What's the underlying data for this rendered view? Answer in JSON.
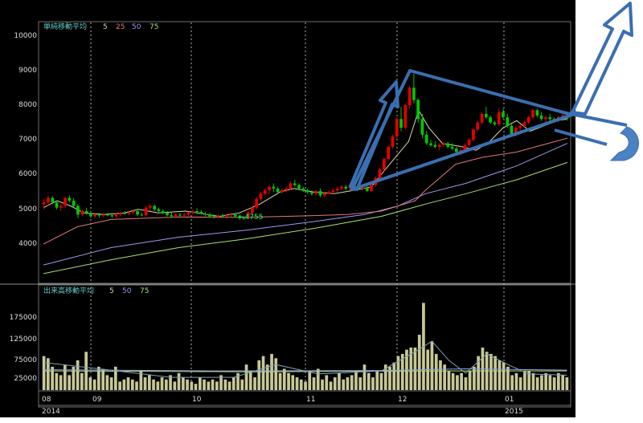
{
  "chart_data": [
    {
      "type": "candlestick",
      "title": "単純移動平均",
      "legend": [
        {
          "label": "5",
          "color": "#d9d9b0"
        },
        {
          "label": "25",
          "color": "#e07878"
        },
        {
          "label": "50",
          "color": "#9a9af0"
        },
        {
          "label": "75",
          "color": "#a8e070"
        }
      ],
      "y_ticks": [
        "10000",
        "9000",
        "8000",
        "7000",
        "6000",
        "5000",
        "4000"
      ],
      "ylim": [
        3000,
        10300
      ],
      "low_annotation": "←4755",
      "series_ma": {
        "ma25": [
          [
            0,
            4050
          ],
          [
            10,
            4550
          ],
          [
            20,
            4760
          ],
          [
            40,
            4830
          ],
          [
            60,
            4820
          ],
          [
            80,
            4870
          ],
          [
            90,
            4900
          ],
          [
            100,
            5000
          ],
          [
            110,
            5300
          ],
          [
            113,
            5600
          ],
          [
            122,
            6350
          ],
          [
            130,
            6550
          ],
          [
            140,
            6700
          ],
          [
            155,
            7100
          ]
        ],
        "ma50": [
          [
            0,
            3450
          ],
          [
            20,
            3950
          ],
          [
            40,
            4250
          ],
          [
            60,
            4450
          ],
          [
            80,
            4700
          ],
          [
            95,
            4900
          ],
          [
            105,
            5150
          ],
          [
            113,
            5500
          ],
          [
            125,
            5800
          ],
          [
            140,
            6300
          ],
          [
            155,
            6950
          ]
        ],
        "ma75": [
          [
            0,
            3200
          ],
          [
            20,
            3600
          ],
          [
            40,
            3950
          ],
          [
            60,
            4200
          ],
          [
            80,
            4500
          ],
          [
            100,
            4850
          ],
          [
            113,
            5200
          ],
          [
            125,
            5500
          ],
          [
            140,
            5900
          ],
          [
            155,
            6400
          ]
        ],
        "ma5": [
          [
            0,
            5100
          ],
          [
            4,
            5300
          ],
          [
            8,
            5150
          ],
          [
            12,
            4950
          ],
          [
            18,
            4900
          ],
          [
            24,
            4950
          ],
          [
            28,
            5050
          ],
          [
            34,
            4950
          ],
          [
            42,
            5000
          ],
          [
            52,
            4850
          ],
          [
            58,
            4950
          ],
          [
            64,
            5200
          ],
          [
            70,
            5550
          ],
          [
            74,
            5650
          ],
          [
            80,
            5550
          ],
          [
            86,
            5500
          ],
          [
            92,
            5600
          ],
          [
            97,
            5700
          ],
          [
            102,
            6300
          ],
          [
            108,
            7000
          ],
          [
            111,
            7900
          ],
          [
            114,
            7400
          ],
          [
            118,
            6950
          ],
          [
            124,
            6850
          ],
          [
            128,
            6750
          ],
          [
            132,
            7000
          ],
          [
            136,
            7400
          ],
          [
            140,
            7600
          ],
          [
            144,
            7300
          ],
          [
            148,
            7450
          ],
          [
            152,
            7600
          ],
          [
            155,
            7650
          ]
        ]
      },
      "candles": [
        [
          5200,
          5350,
          5050,
          5250
        ],
        [
          5250,
          5450,
          5150,
          5380
        ],
        [
          5380,
          5430,
          5200,
          5250
        ],
        [
          5250,
          5300,
          5050,
          5100
        ],
        [
          5100,
          5200,
          5000,
          5150
        ],
        [
          5150,
          5420,
          5100,
          5380
        ],
        [
          5380,
          5450,
          5250,
          5300
        ],
        [
          5300,
          5380,
          5100,
          5150
        ],
        [
          5150,
          5200,
          4800,
          4900
        ],
        [
          4900,
          5050,
          4850,
          5000
        ],
        [
          5000,
          5100,
          4900,
          4950
        ],
        [
          4950,
          5000,
          4800,
          4850
        ],
        [
          4850,
          4950,
          4800,
          4900
        ],
        [
          4900,
          4950,
          4820,
          4870
        ],
        [
          4870,
          4950,
          4820,
          4900
        ],
        [
          4900,
          4950,
          4850,
          4880
        ],
        [
          4880,
          4950,
          4800,
          4850
        ],
        [
          4850,
          4950,
          4800,
          4900
        ],
        [
          4900,
          4980,
          4850,
          4950
        ],
        [
          4950,
          5000,
          4900,
          4920
        ],
        [
          4920,
          5000,
          4880,
          4960
        ],
        [
          4960,
          5050,
          4900,
          5000
        ],
        [
          5000,
          5050,
          4850,
          4900
        ],
        [
          4900,
          4950,
          4850,
          4880
        ],
        [
          4880,
          5150,
          4850,
          5100
        ],
        [
          5100,
          5200,
          5000,
          5150
        ],
        [
          5150,
          5180,
          5000,
          5050
        ],
        [
          5050,
          5100,
          4980,
          5000
        ],
        [
          5000,
          5050,
          4900,
          4950
        ],
        [
          4950,
          5000,
          4850,
          4880
        ],
        [
          4880,
          4950,
          4800,
          4850
        ],
        [
          4850,
          4930,
          4800,
          4900
        ],
        [
          4900,
          4950,
          4850,
          4870
        ],
        [
          4870,
          4950,
          4820,
          4900
        ],
        [
          4900,
          4980,
          4850,
          4950
        ],
        [
          4950,
          5050,
          4900,
          5000
        ],
        [
          5000,
          5080,
          4950,
          4980
        ],
        [
          4980,
          5030,
          4900,
          4920
        ],
        [
          4920,
          4980,
          4850,
          4900
        ],
        [
          4900,
          4950,
          4820,
          4850
        ],
        [
          4850,
          4900,
          4780,
          4830
        ],
        [
          4830,
          4900,
          4800,
          4870
        ],
        [
          4870,
          4920,
          4800,
          4850
        ],
        [
          4850,
          4900,
          4800,
          4880
        ],
        [
          4880,
          4950,
          4830,
          4900
        ],
        [
          4900,
          4950,
          4820,
          4850
        ],
        [
          4850,
          4900,
          4750,
          4800
        ],
        [
          4800,
          4850,
          4755,
          4790
        ],
        [
          4790,
          5000,
          4780,
          4950
        ],
        [
          4950,
          5150,
          4900,
          5100
        ],
        [
          5100,
          5400,
          5050,
          5350
        ],
        [
          5350,
          5550,
          5300,
          5500
        ],
        [
          5500,
          5650,
          5450,
          5600
        ],
        [
          5600,
          5750,
          5500,
          5700
        ],
        [
          5700,
          5800,
          5550,
          5650
        ],
        [
          5650,
          5700,
          5500,
          5550
        ],
        [
          5550,
          5650,
          5500,
          5600
        ],
        [
          5600,
          5700,
          5550,
          5650
        ],
        [
          5650,
          5850,
          5600,
          5800
        ],
        [
          5800,
          5900,
          5700,
          5750
        ],
        [
          5750,
          5800,
          5600,
          5650
        ],
        [
          5650,
          5700,
          5550,
          5600
        ],
        [
          5600,
          5650,
          5500,
          5550
        ],
        [
          5550,
          5600,
          5450,
          5500
        ],
        [
          5500,
          5600,
          5450,
          5580
        ],
        [
          5580,
          5650,
          5400,
          5450
        ],
        [
          5450,
          5550,
          5400,
          5500
        ],
        [
          5500,
          5600,
          5480,
          5550
        ],
        [
          5550,
          5650,
          5500,
          5600
        ],
        [
          5600,
          5700,
          5550,
          5650
        ],
        [
          5650,
          5750,
          5600,
          5700
        ],
        [
          5700,
          5750,
          5600,
          5650
        ],
        [
          5650,
          5800,
          5600,
          5750
        ],
        [
          5750,
          5800,
          5650,
          5700
        ],
        [
          5700,
          5750,
          5600,
          5650
        ],
        [
          5650,
          5720,
          5600,
          5680
        ],
        [
          5680,
          5750,
          5550,
          5580
        ],
        [
          5580,
          5800,
          5550,
          5750
        ],
        [
          5750,
          6000,
          5700,
          5950
        ],
        [
          5950,
          6250,
          5900,
          6200
        ],
        [
          6200,
          6550,
          6150,
          6500
        ],
        [
          6500,
          6900,
          6450,
          6850
        ],
        [
          6850,
          7200,
          6800,
          7150
        ],
        [
          7150,
          7700,
          7100,
          7650
        ],
        [
          7650,
          8000,
          7300,
          7400
        ],
        [
          7400,
          8100,
          7350,
          8050
        ],
        [
          8050,
          8600,
          7950,
          8550
        ],
        [
          8550,
          8950,
          8100,
          8200
        ],
        [
          8200,
          8250,
          7550,
          7650
        ],
        [
          7650,
          7800,
          7100,
          7200
        ],
        [
          7200,
          7300,
          6900,
          6950
        ],
        [
          6950,
          7050,
          6850,
          6900
        ],
        [
          6900,
          7000,
          6800,
          6850
        ],
        [
          6850,
          6950,
          6750,
          6900
        ],
        [
          6900,
          7000,
          6850,
          6950
        ],
        [
          6950,
          7000,
          6800,
          6850
        ],
        [
          6850,
          6950,
          6750,
          6800
        ],
        [
          6800,
          6850,
          6650,
          6700
        ],
        [
          6700,
          6800,
          6600,
          6750
        ],
        [
          6750,
          6950,
          6700,
          6900
        ],
        [
          6900,
          7100,
          6850,
          7050
        ],
        [
          7050,
          7400,
          7000,
          7350
        ],
        [
          7350,
          7600,
          7300,
          7550
        ],
        [
          7550,
          7850,
          7500,
          7800
        ],
        [
          7800,
          8000,
          7650,
          7700
        ],
        [
          7700,
          7750,
          7500,
          7550
        ],
        [
          7550,
          7600,
          7450,
          7500
        ],
        [
          7500,
          7950,
          7450,
          7850
        ],
        [
          7850,
          7950,
          7650,
          7700
        ],
        [
          7700,
          7800,
          7400,
          7450
        ],
        [
          7450,
          7500,
          7150,
          7200
        ],
        [
          7200,
          7450,
          7150,
          7400
        ],
        [
          7400,
          7500,
          7300,
          7450
        ],
        [
          7450,
          7600,
          7400,
          7550
        ],
        [
          7550,
          7750,
          7500,
          7700
        ],
        [
          7700,
          7950,
          7650,
          7900
        ],
        [
          7900,
          7950,
          7700,
          7750
        ],
        [
          7750,
          7850,
          7600,
          7650
        ],
        [
          7650,
          7750,
          7550,
          7700
        ],
        [
          7700,
          7800,
          7600,
          7650
        ],
        [
          7650,
          7700,
          7550,
          7600
        ],
        [
          7600,
          7750,
          7550,
          7700
        ],
        [
          7700,
          7800,
          7650,
          7750
        ],
        [
          7750,
          7800,
          7600,
          7650
        ]
      ]
    },
    {
      "type": "bar",
      "title": "出来高移動平均",
      "legend": [
        {
          "label": "5",
          "color": "#d9d9b0"
        },
        {
          "label": "50",
          "color": "#9a9af0"
        },
        {
          "label": "75",
          "color": "#a8e070"
        }
      ],
      "y_ticks": [
        "175000",
        "125000",
        "75000",
        "25000"
      ],
      "ylim": [
        0,
        220000
      ],
      "values": [
        80000,
        75000,
        55000,
        40000,
        35000,
        60000,
        35000,
        55000,
        70000,
        40000,
        90000,
        30000,
        25000,
        55000,
        50000,
        35000,
        30000,
        55000,
        20000,
        25000,
        30000,
        25000,
        20000,
        45000,
        30000,
        35000,
        25000,
        20000,
        30000,
        25000,
        35000,
        20000,
        40000,
        30000,
        25000,
        20000,
        15000,
        30000,
        25000,
        20000,
        25000,
        20000,
        35000,
        25000,
        20000,
        30000,
        40000,
        25000,
        60000,
        45000,
        30000,
        70000,
        80000,
        60000,
        85000,
        75000,
        40000,
        50000,
        40000,
        35000,
        30000,
        25000,
        20000,
        45000,
        30000,
        50000,
        25000,
        35000,
        20000,
        30000,
        40000,
        25000,
        30000,
        35000,
        45000,
        30000,
        60000,
        40000,
        30000,
        45000,
        40000,
        60000,
        55000,
        65000,
        80000,
        85000,
        95000,
        100000,
        100000,
        130000,
        205000,
        95000,
        115000,
        85000,
        70000,
        60000,
        45000,
        40000,
        35000,
        40000,
        30000,
        45000,
        55000,
        80000,
        100000,
        90000,
        85000,
        80000,
        70000,
        65000,
        55000,
        35000,
        40000,
        30000,
        45000,
        45000,
        40000,
        30000,
        35000,
        40000,
        35000,
        30000,
        40000,
        35000,
        30000
      ],
      "ma5": [
        [
          0,
          65000
        ],
        [
          15,
          48000
        ],
        [
          30,
          30000
        ],
        [
          45,
          30000
        ],
        [
          55,
          60000
        ],
        [
          65,
          38000
        ],
        [
          80,
          45000
        ],
        [
          88,
          90000
        ],
        [
          92,
          115000
        ],
        [
          96,
          70000
        ],
        [
          100,
          40000
        ],
        [
          105,
          85000
        ],
        [
          110,
          60000
        ],
        [
          115,
          38000
        ],
        [
          124,
          35000
        ]
      ],
      "ma50": [
        [
          0,
          48000
        ],
        [
          40,
          45000
        ],
        [
          80,
          46000
        ],
        [
          100,
          50000
        ],
        [
          124,
          47000
        ]
      ],
      "ma75": [
        [
          0,
          45000
        ],
        [
          50,
          43000
        ],
        [
          90,
          45000
        ],
        [
          124,
          45000
        ]
      ]
    }
  ],
  "x_axis": {
    "month_labels": [
      "08",
      "09",
      "10",
      "11",
      "12",
      "01"
    ],
    "year_labels": [
      "2014",
      "2015"
    ]
  },
  "colors": {
    "up": "#e60000",
    "down": "#00c800",
    "volume_bar": "#c8c898",
    "annotation": "#3a6fb0"
  }
}
